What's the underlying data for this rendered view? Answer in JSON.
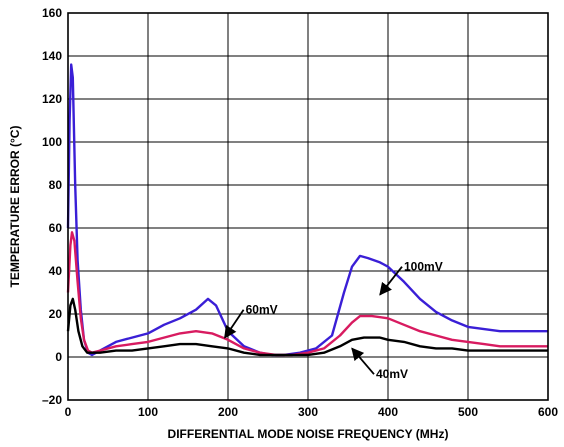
{
  "chart_data": {
    "type": "line",
    "xlabel": "DIFFERENTIAL MODE NOISE FREQUENCY (MHz)",
    "ylabel": "TEMPERATURE ERROR (°C)",
    "xlim": [
      0,
      600
    ],
    "ylim": [
      -20,
      160
    ],
    "xticks": [
      "0",
      "100",
      "200",
      "300",
      "400",
      "500",
      "600"
    ],
    "yticks": [
      "–20",
      "0",
      "20",
      "40",
      "60",
      "80",
      "100",
      "120",
      "140",
      "160"
    ],
    "grid": true,
    "legend": "none",
    "series": [
      {
        "name": "100mV",
        "color": "#3a1fd6",
        "points": [
          [
            0,
            60
          ],
          [
            2,
            110
          ],
          [
            4,
            136
          ],
          [
            6,
            130
          ],
          [
            9,
            80
          ],
          [
            12,
            45
          ],
          [
            16,
            22
          ],
          [
            20,
            8
          ],
          [
            25,
            2
          ],
          [
            30,
            1
          ],
          [
            40,
            3
          ],
          [
            60,
            7
          ],
          [
            80,
            9
          ],
          [
            100,
            11
          ],
          [
            120,
            15
          ],
          [
            140,
            18
          ],
          [
            160,
            22
          ],
          [
            175,
            27
          ],
          [
            185,
            24
          ],
          [
            200,
            12
          ],
          [
            220,
            5
          ],
          [
            240,
            2
          ],
          [
            255,
            1
          ],
          [
            270,
            1
          ],
          [
            290,
            2
          ],
          [
            310,
            4
          ],
          [
            330,
            10
          ],
          [
            345,
            30
          ],
          [
            355,
            42
          ],
          [
            365,
            47
          ],
          [
            375,
            46
          ],
          [
            390,
            44
          ],
          [
            400,
            42
          ],
          [
            420,
            35
          ],
          [
            440,
            27
          ],
          [
            460,
            21
          ],
          [
            480,
            17
          ],
          [
            500,
            14
          ],
          [
            520,
            13
          ],
          [
            540,
            12
          ],
          [
            560,
            12
          ],
          [
            580,
            12
          ],
          [
            600,
            12
          ]
        ]
      },
      {
        "name": "60mV",
        "color": "#d81b60",
        "points": [
          [
            0,
            30
          ],
          [
            3,
            52
          ],
          [
            5,
            58
          ],
          [
            8,
            54
          ],
          [
            12,
            35
          ],
          [
            16,
            18
          ],
          [
            20,
            8
          ],
          [
            25,
            3
          ],
          [
            30,
            2
          ],
          [
            40,
            3
          ],
          [
            60,
            5
          ],
          [
            80,
            6
          ],
          [
            100,
            7
          ],
          [
            120,
            9
          ],
          [
            140,
            11
          ],
          [
            160,
            12
          ],
          [
            180,
            11
          ],
          [
            200,
            8
          ],
          [
            220,
            4
          ],
          [
            240,
            2
          ],
          [
            260,
            1
          ],
          [
            280,
            1
          ],
          [
            300,
            2
          ],
          [
            320,
            4
          ],
          [
            340,
            10
          ],
          [
            355,
            16
          ],
          [
            365,
            19
          ],
          [
            380,
            19
          ],
          [
            400,
            18
          ],
          [
            420,
            15
          ],
          [
            440,
            12
          ],
          [
            460,
            10
          ],
          [
            480,
            8
          ],
          [
            500,
            7
          ],
          [
            520,
            6
          ],
          [
            540,
            5
          ],
          [
            560,
            5
          ],
          [
            580,
            5
          ],
          [
            600,
            5
          ]
        ]
      },
      {
        "name": "40mV",
        "color": "#000000",
        "points": [
          [
            0,
            12
          ],
          [
            3,
            24
          ],
          [
            6,
            27
          ],
          [
            9,
            22
          ],
          [
            13,
            12
          ],
          [
            18,
            5
          ],
          [
            24,
            2
          ],
          [
            30,
            2
          ],
          [
            40,
            2
          ],
          [
            60,
            3
          ],
          [
            80,
            3
          ],
          [
            100,
            4
          ],
          [
            120,
            5
          ],
          [
            140,
            6
          ],
          [
            160,
            6
          ],
          [
            180,
            5
          ],
          [
            200,
            4
          ],
          [
            220,
            2
          ],
          [
            240,
            1
          ],
          [
            260,
            1
          ],
          [
            280,
            1
          ],
          [
            300,
            1
          ],
          [
            320,
            2
          ],
          [
            340,
            5
          ],
          [
            355,
            8
          ],
          [
            370,
            9
          ],
          [
            390,
            9
          ],
          [
            400,
            8
          ],
          [
            420,
            7
          ],
          [
            440,
            5
          ],
          [
            460,
            4
          ],
          [
            480,
            4
          ],
          [
            500,
            3
          ],
          [
            520,
            3
          ],
          [
            540,
            3
          ],
          [
            560,
            3
          ],
          [
            580,
            3
          ],
          [
            600,
            3
          ]
        ]
      }
    ],
    "annotations": [
      {
        "text": "100mV",
        "label_x": 420,
        "label_y": 42,
        "arrow_to_x": 390,
        "arrow_to_y": 29
      },
      {
        "text": "60mV",
        "label_x": 222,
        "label_y": 22,
        "arrow_to_x": 196,
        "arrow_to_y": 9
      },
      {
        "text": "40mV",
        "label_x": 385,
        "label_y": -8,
        "arrow_to_x": 355,
        "arrow_to_y": 4
      }
    ]
  }
}
